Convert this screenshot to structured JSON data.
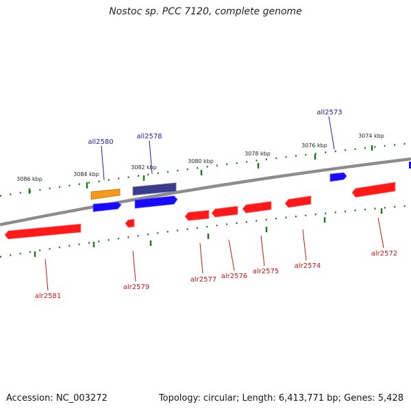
{
  "title": "Nostoc sp. PCC 7120, complete genome",
  "footer": {
    "accession": "Accession: NC_003272",
    "topology": "Topology: circular; Length: 6,413,771 bp; Genes: 5,428"
  },
  "ticks": [
    {
      "label": "3086 kbp"
    },
    {
      "label": "3084 kbp"
    },
    {
      "label": "3082 kbp"
    },
    {
      "label": "3080 kbp"
    },
    {
      "label": "3078 kbp"
    },
    {
      "label": "3076 kbp"
    },
    {
      "label": "3074 kbp"
    }
  ],
  "genes": [
    {
      "name": "all2580",
      "strand": "reverse",
      "color": "#1a0aff"
    },
    {
      "name": "all2578",
      "strand": "reverse",
      "color": "#1a0aff"
    },
    {
      "name": "all2573",
      "strand": "reverse",
      "color": "#1a0aff"
    },
    {
      "name": "alr2581",
      "strand": "forward",
      "color": "#ff1a1a"
    },
    {
      "name": "alr2579",
      "strand": "forward",
      "color": "#ff1a1a"
    },
    {
      "name": "alr2577",
      "strand": "forward",
      "color": "#ff1a1a"
    },
    {
      "name": "alr2576",
      "strand": "forward",
      "color": "#ff1a1a"
    },
    {
      "name": "alr2575",
      "strand": "forward",
      "color": "#ff1a1a"
    },
    {
      "name": "alr2574",
      "strand": "forward",
      "color": "#ff1a1a"
    },
    {
      "name": "alr2572",
      "strand": "forward",
      "color": "#ff1a1a"
    }
  ],
  "features": [
    {
      "name": "orange-feature",
      "color": "#f59a1a"
    },
    {
      "name": "navy-feature",
      "color": "#3c3c8c"
    }
  ],
  "colors": {
    "backbone": "#8c8c8c",
    "tick": "#1e7a1e",
    "reverse_label": "#1a1aaa",
    "forward_label": "#cc1111"
  }
}
